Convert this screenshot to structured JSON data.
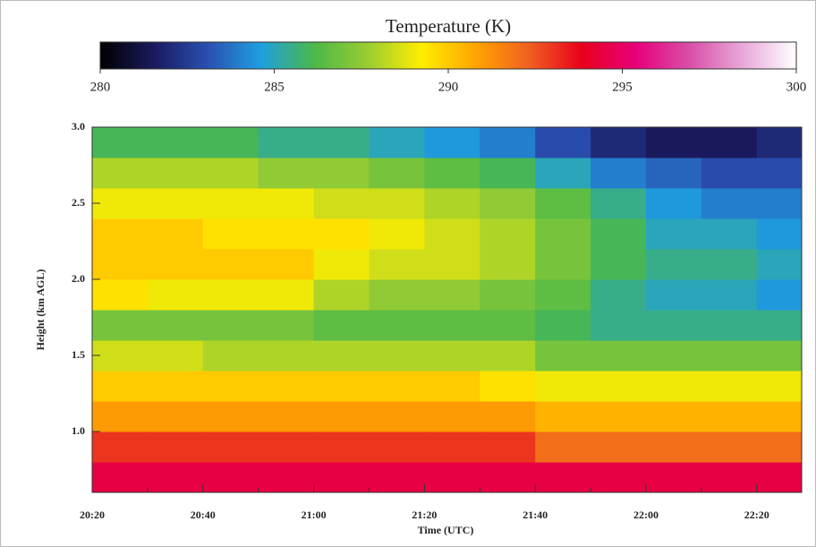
{
  "chart_data": {
    "type": "heatmap",
    "title": "Temperature (K)",
    "x_label": "Time (UTC)",
    "y_label": "Height (km AGL)",
    "categories": [
      "20:20",
      null,
      "20:40",
      null,
      "21:00",
      null,
      "21:20",
      null,
      "21:40",
      null,
      "22:00",
      null,
      "22:20"
    ],
    "y": [
      0.7,
      0.9,
      1.1,
      1.3,
      1.5,
      1.7,
      1.9,
      2.1,
      2.3,
      2.5,
      2.7,
      2.9
    ],
    "ylim": [
      0.6,
      3.0
    ],
    "yticks": [
      {
        "value": 1.0,
        "label": "1.0"
      },
      {
        "value": 1.5,
        "label": "1.5"
      },
      {
        "value": 2.0,
        "label": "2.0"
      },
      {
        "value": 2.5,
        "label": "2.5"
      },
      {
        "value": 3.0,
        "label": "3.0"
      }
    ],
    "zlim": [
      280,
      300
    ],
    "zticks": [
      280,
      285,
      290,
      295,
      300
    ],
    "colorscale": [
      "#000000",
      "#1a1a5e",
      "#2a4fb0",
      "#1e9fe0",
      "#4cb848",
      "#9acd32",
      "#ffee00",
      "#ffa500",
      "#f06020",
      "#e8001c",
      "#e8007a",
      "#d94fa8",
      "#e8a8d8",
      "#ffffff"
    ],
    "values": [
      [
        294.5,
        294.5,
        294.5,
        294.5,
        294.5,
        294.5,
        294.5,
        294.5,
        294.5,
        294.5,
        294.5,
        294.5,
        294.5
      ],
      [
        293,
        293,
        293,
        293,
        293,
        293,
        293,
        293,
        292,
        292,
        292,
        292,
        292
      ],
      [
        291,
        291,
        291,
        291,
        291,
        291,
        291,
        291,
        290.5,
        290.5,
        290.5,
        290.5,
        290.5
      ],
      [
        290,
        290,
        290,
        290,
        290,
        290,
        290,
        289.5,
        289,
        289,
        289,
        289,
        289
      ],
      [
        288.5,
        288.5,
        288,
        288,
        288,
        288,
        288,
        288,
        287,
        287,
        287,
        287,
        287
      ],
      [
        287,
        287,
        287,
        287,
        286.5,
        286.5,
        286.5,
        286.5,
        286,
        285.5,
        285.5,
        285.5,
        285.5
      ],
      [
        289.5,
        289,
        289,
        289,
        288,
        287.5,
        287.5,
        287,
        286.5,
        285.5,
        285,
        285,
        284.5
      ],
      [
        290,
        290,
        290,
        290,
        289,
        288.5,
        288.5,
        288,
        287,
        286,
        285.5,
        285.5,
        285
      ],
      [
        290,
        290,
        289.5,
        289.5,
        289.5,
        289,
        288.5,
        288,
        287,
        286,
        285,
        285,
        284.5
      ],
      [
        289,
        289,
        289,
        289,
        288.5,
        288.5,
        288,
        287.5,
        286.5,
        285.5,
        284.5,
        284,
        284
      ],
      [
        288,
        288,
        288,
        287.5,
        287.5,
        287,
        286.5,
        286,
        285,
        284,
        283.5,
        283,
        283
      ],
      [
        286,
        286,
        286,
        285.5,
        285.5,
        285,
        284.5,
        284,
        283,
        282,
        281.5,
        281.5,
        282
      ]
    ]
  }
}
